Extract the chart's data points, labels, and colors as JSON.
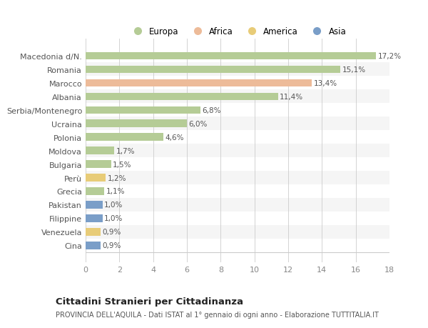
{
  "categories": [
    "Macedonia d/N.",
    "Romania",
    "Marocco",
    "Albania",
    "Serbia/Montenegro",
    "Ucraina",
    "Polonia",
    "Moldova",
    "Bulgaria",
    "Perù",
    "Grecia",
    "Pakistan",
    "Filippine",
    "Venezuela",
    "Cina"
  ],
  "values": [
    17.2,
    15.1,
    13.4,
    11.4,
    6.8,
    6.0,
    4.6,
    1.7,
    1.5,
    1.2,
    1.1,
    1.0,
    1.0,
    0.9,
    0.9
  ],
  "labels": [
    "17,2%",
    "15,1%",
    "13,4%",
    "11,4%",
    "6,8%",
    "6,0%",
    "4,6%",
    "1,7%",
    "1,5%",
    "1,2%",
    "1,1%",
    "1,0%",
    "1,0%",
    "0,9%",
    "0,9%"
  ],
  "colors": [
    "#b5cc96",
    "#b5cc96",
    "#edbb99",
    "#b5cc96",
    "#b5cc96",
    "#b5cc96",
    "#b5cc96",
    "#b5cc96",
    "#b5cc96",
    "#e8cc78",
    "#b5cc96",
    "#7a9ec8",
    "#7a9ec8",
    "#e8cc78",
    "#7a9ec8"
  ],
  "legend": {
    "labels": [
      "Europa",
      "Africa",
      "America",
      "Asia"
    ],
    "colors": [
      "#b5cc96",
      "#edbb99",
      "#e8cc78",
      "#7a9ec8"
    ]
  },
  "title": "Cittadini Stranieri per Cittadinanza",
  "subtitle": "PROVINCIA DELL'AQUILA - Dati ISTAT al 1° gennaio di ogni anno - Elaborazione TUTTITALIA.IT",
  "xlim": [
    0,
    18
  ],
  "xticks": [
    0,
    2,
    4,
    6,
    8,
    10,
    12,
    14,
    16,
    18
  ],
  "background_color": "#ffffff",
  "plot_bg_color": "#ffffff",
  "grid_color": "#cccccc",
  "row_alt_color": "#f0f0f0"
}
